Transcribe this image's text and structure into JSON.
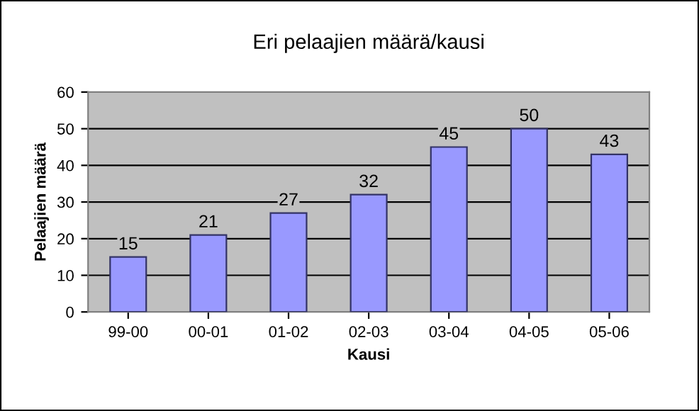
{
  "chart_data": {
    "type": "bar",
    "title": "Eri pelaajien määrä/kausi",
    "xlabel": "Kausi",
    "ylabel": "Pelaajien määrä",
    "categories": [
      "99-00",
      "00-01",
      "01-02",
      "02-03",
      "03-04",
      "04-05",
      "05-06"
    ],
    "values": [
      15,
      21,
      27,
      32,
      45,
      50,
      43
    ],
    "color": "#9999ff",
    "ylim": [
      0,
      60
    ],
    "yticks": [
      0,
      10,
      20,
      30,
      40,
      50,
      60
    ],
    "grid": "y",
    "data_labels": true,
    "legend": false
  }
}
